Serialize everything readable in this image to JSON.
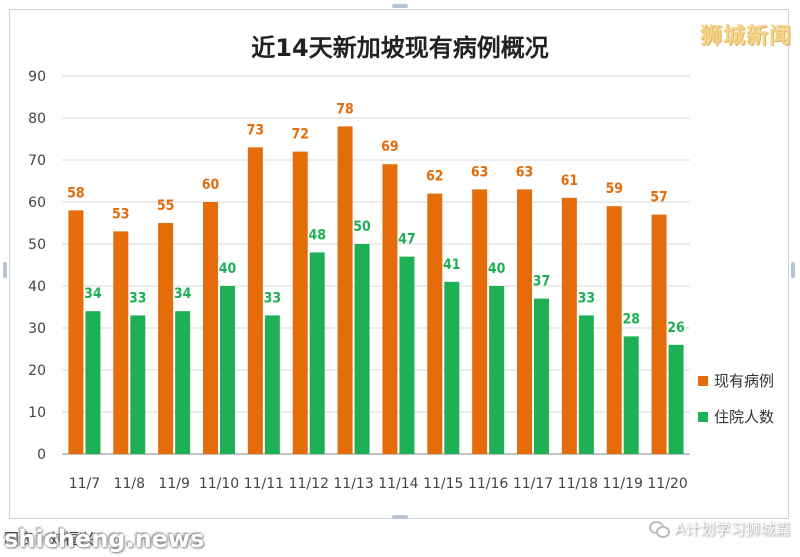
{
  "watermark_brand": "狮城新闻",
  "watermark_site": "shicheng.news",
  "source_note": "图表：刘福兴",
  "footer_account": "A计划学习狮城篇",
  "colors": {
    "current_cases": "#E46C0A",
    "hospitalized": "#1EB055",
    "gridline": "#d9d9d9",
    "frame_border": "#c9d3de",
    "watermark_brand": "#f5d48a"
  },
  "icons": [
    "wechat-icon"
  ],
  "chart_data": {
    "type": "bar",
    "title": "近14天新加坡现有病例概况",
    "xlabel": "",
    "ylabel": "",
    "ylim": [
      0,
      90
    ],
    "yticks": [
      0,
      10,
      20,
      30,
      40,
      50,
      60,
      70,
      80,
      90
    ],
    "grid": true,
    "legend_position": "right",
    "categories": [
      "11/7",
      "11/8",
      "11/9",
      "11/10",
      "11/11",
      "11/12",
      "11/13",
      "11/14",
      "11/15",
      "11/16",
      "11/17",
      "11/18",
      "11/19",
      "11/20"
    ],
    "series": [
      {
        "name": "现有病例",
        "values": [
          58,
          53,
          55,
          60,
          73,
          72,
          78,
          69,
          62,
          63,
          63,
          61,
          59,
          57
        ]
      },
      {
        "name": "住院人数",
        "values": [
          34,
          33,
          34,
          40,
          33,
          48,
          50,
          47,
          41,
          40,
          37,
          33,
          28,
          26
        ]
      }
    ]
  }
}
